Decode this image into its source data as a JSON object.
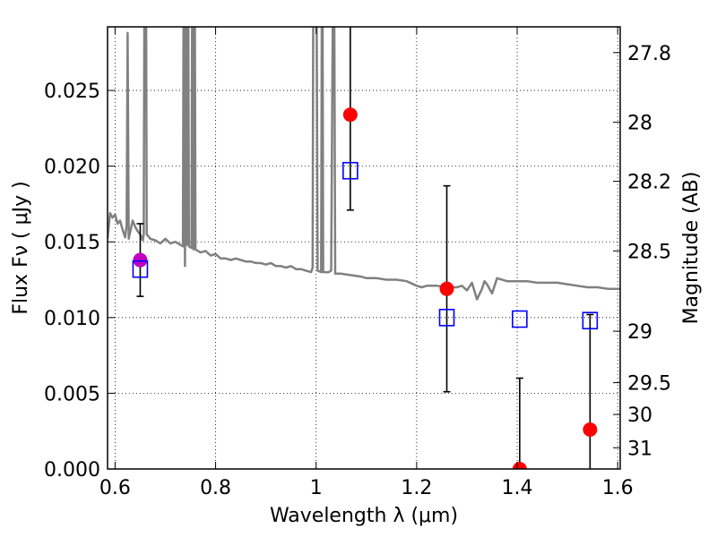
{
  "chart_data": {
    "type": "scatter",
    "xlabel": "Wavelength  λ (μm)",
    "ylabel": "Flux  Fν  ( μJy )",
    "y2label": "Magnitude (AB)",
    "xlim": [
      0.585,
      1.605
    ],
    "ylim": [
      0.0,
      0.0292
    ],
    "grid": true,
    "x_ticks": [
      {
        "v": 0.6,
        "label": "0.6"
      },
      {
        "v": 0.8,
        "label": "0.8"
      },
      {
        "v": 1.0,
        "label": "1"
      },
      {
        "v": 1.2,
        "label": "1.2"
      },
      {
        "v": 1.4,
        "label": "1.4"
      },
      {
        "v": 1.6,
        "label": "1.6"
      }
    ],
    "y_ticks": [
      {
        "v": 0.0,
        "label": "0.000"
      },
      {
        "v": 0.005,
        "label": "0.005"
      },
      {
        "v": 0.01,
        "label": "0.010"
      },
      {
        "v": 0.015,
        "label": "0.015"
      },
      {
        "v": 0.02,
        "label": "0.020"
      },
      {
        "v": 0.025,
        "label": "0.025"
      }
    ],
    "y2_ticks": [
      {
        "flux": 0.0275,
        "label": "27.8"
      },
      {
        "flux": 0.0229,
        "label": "28"
      },
      {
        "flux": 0.019,
        "label": "28.2"
      },
      {
        "flux": 0.0144,
        "label": "28.5"
      },
      {
        "flux": 0.0091,
        "label": "29"
      },
      {
        "flux": 0.0057,
        "label": "29.5"
      },
      {
        "flux": 0.0036,
        "label": "30"
      },
      {
        "flux": 0.0014,
        "label": "31"
      }
    ],
    "model_sed": {
      "color": "#808080",
      "points": [
        [
          0.585,
          0.0152
        ],
        [
          0.59,
          0.0169
        ],
        [
          0.595,
          0.0166
        ],
        [
          0.6,
          0.0168
        ],
        [
          0.605,
          0.0162
        ],
        [
          0.61,
          0.0164
        ],
        [
          0.615,
          0.0158
        ],
        [
          0.62,
          0.0153
        ],
        [
          0.623,
          0.0161
        ],
        [
          0.625,
          0.0288
        ],
        [
          0.627,
          0.0152
        ],
        [
          0.635,
          0.0164
        ],
        [
          0.64,
          0.016
        ],
        [
          0.645,
          0.0157
        ],
        [
          0.65,
          0.0155
        ],
        [
          0.655,
          0.0151
        ],
        [
          0.657,
          0.0155
        ],
        [
          0.659,
          0.04
        ],
        [
          0.661,
          0.04
        ],
        [
          0.663,
          0.0155
        ],
        [
          0.67,
          0.0152
        ],
        [
          0.68,
          0.0151
        ],
        [
          0.69,
          0.0149
        ],
        [
          0.7,
          0.0152
        ],
        [
          0.71,
          0.0149
        ],
        [
          0.72,
          0.015
        ],
        [
          0.73,
          0.0148
        ],
        [
          0.735,
          0.0147
        ],
        [
          0.737,
          0.04
        ],
        [
          0.739,
          0.0134
        ],
        [
          0.741,
          0.04
        ],
        [
          0.743,
          0.0148
        ],
        [
          0.745,
          0.04
        ],
        [
          0.747,
          0.0147
        ],
        [
          0.752,
          0.0146
        ],
        [
          0.754,
          0.04
        ],
        [
          0.756,
          0.0145
        ],
        [
          0.758,
          0.04
        ],
        [
          0.76,
          0.0145
        ],
        [
          0.77,
          0.0143
        ],
        [
          0.78,
          0.0144
        ],
        [
          0.79,
          0.0141
        ],
        [
          0.8,
          0.0142
        ],
        [
          0.81,
          0.0139
        ],
        [
          0.82,
          0.0139
        ],
        [
          0.83,
          0.0138
        ],
        [
          0.84,
          0.0139
        ],
        [
          0.85,
          0.0138
        ],
        [
          0.86,
          0.0137
        ],
        [
          0.87,
          0.0137
        ],
        [
          0.88,
          0.0136
        ],
        [
          0.89,
          0.0136
        ],
        [
          0.9,
          0.0135
        ],
        [
          0.91,
          0.0136
        ],
        [
          0.92,
          0.0134
        ],
        [
          0.93,
          0.0134
        ],
        [
          0.94,
          0.0133
        ],
        [
          0.95,
          0.0134
        ],
        [
          0.96,
          0.0132
        ],
        [
          0.97,
          0.0132
        ],
        [
          0.98,
          0.0131
        ],
        [
          0.99,
          0.013
        ],
        [
          0.993,
          0.0133
        ],
        [
          0.995,
          0.04
        ],
        [
          1.0,
          0.04
        ],
        [
          1.003,
          0.0131
        ],
        [
          1.01,
          0.013
        ],
        [
          1.012,
          0.04
        ],
        [
          1.014,
          0.013
        ],
        [
          1.02,
          0.013
        ],
        [
          1.025,
          0.013
        ],
        [
          1.03,
          0.0131
        ],
        [
          1.035,
          0.04
        ],
        [
          1.038,
          0.0129
        ],
        [
          1.05,
          0.0129
        ],
        [
          1.07,
          0.0128
        ],
        [
          1.09,
          0.0127
        ],
        [
          1.1,
          0.0126
        ],
        [
          1.12,
          0.0126
        ],
        [
          1.14,
          0.0125
        ],
        [
          1.16,
          0.0125
        ],
        [
          1.18,
          0.0124
        ],
        [
          1.2,
          0.0121
        ],
        [
          1.21,
          0.012
        ],
        [
          1.22,
          0.0121
        ],
        [
          1.24,
          0.0121
        ],
        [
          1.26,
          0.012
        ],
        [
          1.28,
          0.012
        ],
        [
          1.29,
          0.0121
        ],
        [
          1.3,
          0.0118
        ],
        [
          1.31,
          0.0123
        ],
        [
          1.32,
          0.0112
        ],
        [
          1.33,
          0.0119
        ],
        [
          1.335,
          0.0124
        ],
        [
          1.34,
          0.0122
        ],
        [
          1.35,
          0.0116
        ],
        [
          1.36,
          0.0126
        ],
        [
          1.38,
          0.0124
        ],
        [
          1.4,
          0.0124
        ],
        [
          1.42,
          0.0124
        ],
        [
          1.44,
          0.0123
        ],
        [
          1.46,
          0.0123
        ],
        [
          1.48,
          0.0123
        ],
        [
          1.5,
          0.0122
        ],
        [
          1.52,
          0.0121
        ],
        [
          1.54,
          0.012
        ],
        [
          1.56,
          0.012
        ],
        [
          1.58,
          0.0119
        ],
        [
          1.6,
          0.0119
        ],
        [
          1.605,
          0.0119
        ]
      ]
    },
    "series": [
      {
        "marker": "circle",
        "color": "#ff0000",
        "points": [
          {
            "x": 1.068,
            "y": 0.0234,
            "err_low": 0.0063,
            "err_high": 0.0063
          },
          {
            "x": 1.26,
            "y": 0.0119,
            "err_low": 0.0068,
            "err_high": 0.0068
          },
          {
            "x": 1.405,
            "y": 0.0,
            "err_low": 0.006,
            "err_high": 0.006
          },
          {
            "x": 1.545,
            "y": 0.0026,
            "err_low": 0.0076,
            "err_high": 0.0076
          }
        ]
      },
      {
        "marker": "circle",
        "color": "#bf00bf",
        "points": [
          {
            "x": 0.65,
            "y": 0.0138,
            "err_low": 0.0024,
            "err_high": 0.0024
          }
        ]
      },
      {
        "marker": "square",
        "color": "#0000ff",
        "points": [
          {
            "x": 0.65,
            "y": 0.0132
          },
          {
            "x": 1.068,
            "y": 0.0197
          },
          {
            "x": 1.26,
            "y": 0.01
          },
          {
            "x": 1.405,
            "y": 0.0099
          },
          {
            "x": 1.545,
            "y": 0.0098
          }
        ]
      }
    ]
  }
}
